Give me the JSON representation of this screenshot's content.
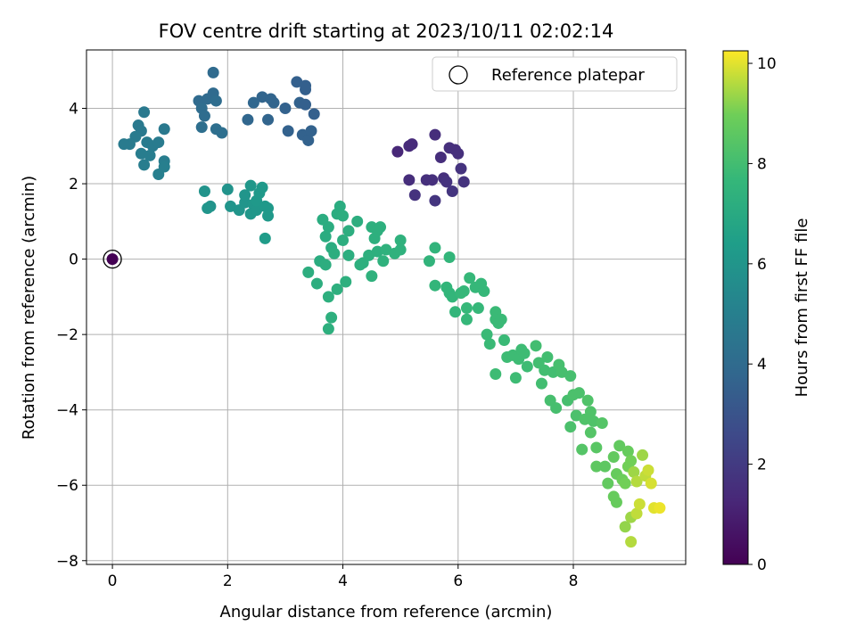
{
  "chart_data": {
    "type": "scatter",
    "title": "FOV centre drift starting at 2023/10/11 02:02:14",
    "xlabel": "Angular distance from reference (arcmin)",
    "ylabel": "Rotation from reference (arcmin)",
    "xlim": [
      -0.45,
      9.95
    ],
    "ylim": [
      -8.1,
      5.55
    ],
    "x_ticks": [
      0,
      2,
      4,
      6,
      8
    ],
    "y_ticks": [
      -8,
      -6,
      -4,
      -2,
      0,
      2,
      4
    ],
    "grid": true,
    "legend": {
      "position": "top-right",
      "entries": [
        "Reference platepar"
      ]
    },
    "reference_point": {
      "x": 0,
      "y": 0,
      "c": 0
    },
    "colorbar": {
      "label": "Hours from first FF file",
      "range": [
        0,
        10.25
      ],
      "ticks": [
        0,
        2,
        4,
        6,
        8,
        10
      ],
      "colormap": "viridis"
    },
    "points": [
      {
        "x": 0.0,
        "y": 0.0,
        "c": 0.0
      },
      {
        "x": 4.95,
        "y": 2.85,
        "c": 1.3
      },
      {
        "x": 5.15,
        "y": 3.0,
        "c": 1.4
      },
      {
        "x": 5.2,
        "y": 3.05,
        "c": 1.4
      },
      {
        "x": 5.6,
        "y": 3.3,
        "c": 1.5
      },
      {
        "x": 5.85,
        "y": 2.95,
        "c": 1.6
      },
      {
        "x": 5.95,
        "y": 2.9,
        "c": 1.6
      },
      {
        "x": 6.0,
        "y": 2.8,
        "c": 1.6
      },
      {
        "x": 5.7,
        "y": 2.7,
        "c": 1.5
      },
      {
        "x": 6.05,
        "y": 2.4,
        "c": 1.7
      },
      {
        "x": 5.15,
        "y": 2.1,
        "c": 1.5
      },
      {
        "x": 5.45,
        "y": 2.1,
        "c": 1.6
      },
      {
        "x": 5.55,
        "y": 2.1,
        "c": 1.6
      },
      {
        "x": 5.75,
        "y": 2.15,
        "c": 1.6
      },
      {
        "x": 5.8,
        "y": 2.05,
        "c": 1.7
      },
      {
        "x": 6.1,
        "y": 2.05,
        "c": 1.7
      },
      {
        "x": 5.25,
        "y": 1.7,
        "c": 1.7
      },
      {
        "x": 5.6,
        "y": 1.55,
        "c": 1.8
      },
      {
        "x": 5.9,
        "y": 1.8,
        "c": 1.8
      },
      {
        "x": 1.75,
        "y": 4.95,
        "c": 4.0
      },
      {
        "x": 1.65,
        "y": 4.25,
        "c": 4.0
      },
      {
        "x": 1.75,
        "y": 4.4,
        "c": 4.0
      },
      {
        "x": 1.5,
        "y": 4.2,
        "c": 4.0
      },
      {
        "x": 1.8,
        "y": 4.2,
        "c": 4.1
      },
      {
        "x": 1.55,
        "y": 4.0,
        "c": 4.1
      },
      {
        "x": 1.6,
        "y": 3.8,
        "c": 4.1
      },
      {
        "x": 1.55,
        "y": 3.5,
        "c": 4.2
      },
      {
        "x": 1.8,
        "y": 3.45,
        "c": 4.2
      },
      {
        "x": 1.9,
        "y": 3.35,
        "c": 4.2
      },
      {
        "x": 2.35,
        "y": 3.7,
        "c": 3.8
      },
      {
        "x": 2.45,
        "y": 4.15,
        "c": 3.8
      },
      {
        "x": 2.6,
        "y": 4.3,
        "c": 3.7
      },
      {
        "x": 2.75,
        "y": 4.25,
        "c": 3.7
      },
      {
        "x": 2.8,
        "y": 4.15,
        "c": 3.7
      },
      {
        "x": 2.7,
        "y": 3.7,
        "c": 3.7
      },
      {
        "x": 3.0,
        "y": 4.0,
        "c": 3.6
      },
      {
        "x": 3.05,
        "y": 3.4,
        "c": 3.6
      },
      {
        "x": 3.2,
        "y": 4.7,
        "c": 3.5
      },
      {
        "x": 3.35,
        "y": 4.6,
        "c": 3.5
      },
      {
        "x": 3.35,
        "y": 4.5,
        "c": 3.5
      },
      {
        "x": 3.25,
        "y": 4.15,
        "c": 3.6
      },
      {
        "x": 3.35,
        "y": 4.1,
        "c": 3.5
      },
      {
        "x": 3.3,
        "y": 3.3,
        "c": 3.6
      },
      {
        "x": 3.4,
        "y": 3.15,
        "c": 3.6
      },
      {
        "x": 3.45,
        "y": 3.4,
        "c": 3.6
      },
      {
        "x": 3.5,
        "y": 3.85,
        "c": 3.5
      },
      {
        "x": 0.55,
        "y": 3.9,
        "c": 4.7
      },
      {
        "x": 0.45,
        "y": 3.55,
        "c": 4.7
      },
      {
        "x": 0.5,
        "y": 3.4,
        "c": 4.7
      },
      {
        "x": 0.4,
        "y": 3.25,
        "c": 4.8
      },
      {
        "x": 0.3,
        "y": 3.05,
        "c": 4.8
      },
      {
        "x": 0.2,
        "y": 3.05,
        "c": 4.8
      },
      {
        "x": 0.6,
        "y": 3.1,
        "c": 4.8
      },
      {
        "x": 0.7,
        "y": 3.0,
        "c": 4.8
      },
      {
        "x": 0.8,
        "y": 3.1,
        "c": 4.8
      },
      {
        "x": 0.9,
        "y": 3.45,
        "c": 4.7
      },
      {
        "x": 0.5,
        "y": 2.8,
        "c": 4.9
      },
      {
        "x": 0.65,
        "y": 2.75,
        "c": 4.9
      },
      {
        "x": 0.55,
        "y": 2.5,
        "c": 4.9
      },
      {
        "x": 0.9,
        "y": 2.6,
        "c": 4.9
      },
      {
        "x": 0.9,
        "y": 2.45,
        "c": 5.0
      },
      {
        "x": 0.8,
        "y": 2.25,
        "c": 5.0
      },
      {
        "x": 1.6,
        "y": 1.8,
        "c": 5.9
      },
      {
        "x": 1.7,
        "y": 1.4,
        "c": 5.9
      },
      {
        "x": 1.65,
        "y": 1.35,
        "c": 6.0
      },
      {
        "x": 2.0,
        "y": 1.85,
        "c": 5.9
      },
      {
        "x": 2.05,
        "y": 1.4,
        "c": 6.0
      },
      {
        "x": 2.2,
        "y": 1.3,
        "c": 6.0
      },
      {
        "x": 2.3,
        "y": 1.5,
        "c": 6.0
      },
      {
        "x": 2.3,
        "y": 1.7,
        "c": 6.0
      },
      {
        "x": 2.4,
        "y": 1.95,
        "c": 6.1
      },
      {
        "x": 2.4,
        "y": 1.2,
        "c": 6.1
      },
      {
        "x": 2.45,
        "y": 1.45,
        "c": 6.1
      },
      {
        "x": 2.5,
        "y": 1.3,
        "c": 6.1
      },
      {
        "x": 2.5,
        "y": 1.55,
        "c": 6.2
      },
      {
        "x": 2.55,
        "y": 1.75,
        "c": 6.2
      },
      {
        "x": 2.6,
        "y": 1.9,
        "c": 6.2
      },
      {
        "x": 2.65,
        "y": 1.4,
        "c": 6.2
      },
      {
        "x": 2.7,
        "y": 1.35,
        "c": 6.2
      },
      {
        "x": 2.7,
        "y": 1.15,
        "c": 6.2
      },
      {
        "x": 2.65,
        "y": 0.55,
        "c": 6.3
      },
      {
        "x": 3.6,
        "y": -0.05,
        "c": 7.1
      },
      {
        "x": 3.7,
        "y": 0.6,
        "c": 7.1
      },
      {
        "x": 3.75,
        "y": 0.85,
        "c": 7.1
      },
      {
        "x": 3.8,
        "y": 0.3,
        "c": 7.1
      },
      {
        "x": 3.85,
        "y": 0.15,
        "c": 7.2
      },
      {
        "x": 3.9,
        "y": 1.2,
        "c": 7.1
      },
      {
        "x": 3.95,
        "y": 1.4,
        "c": 7.1
      },
      {
        "x": 4.0,
        "y": 1.15,
        "c": 7.2
      },
      {
        "x": 3.55,
        "y": -0.65,
        "c": 7.2
      },
      {
        "x": 3.7,
        "y": -0.15,
        "c": 7.2
      },
      {
        "x": 3.75,
        "y": -1.0,
        "c": 7.3
      },
      {
        "x": 3.8,
        "y": -1.55,
        "c": 7.3
      },
      {
        "x": 3.75,
        "y": -1.85,
        "c": 7.3
      },
      {
        "x": 3.9,
        "y": -0.8,
        "c": 7.3
      },
      {
        "x": 4.05,
        "y": -0.6,
        "c": 7.3
      },
      {
        "x": 3.4,
        "y": -0.35,
        "c": 7.2
      },
      {
        "x": 3.65,
        "y": 1.05,
        "c": 7.1
      },
      {
        "x": 4.0,
        "y": 0.5,
        "c": 7.2
      },
      {
        "x": 4.1,
        "y": 0.1,
        "c": 7.2
      },
      {
        "x": 4.1,
        "y": 0.75,
        "c": 7.2
      },
      {
        "x": 4.25,
        "y": 1.0,
        "c": 7.2
      },
      {
        "x": 4.3,
        "y": -0.15,
        "c": 7.3
      },
      {
        "x": 4.35,
        "y": -0.1,
        "c": 7.3
      },
      {
        "x": 4.45,
        "y": 0.1,
        "c": 7.3
      },
      {
        "x": 4.5,
        "y": 0.85,
        "c": 7.3
      },
      {
        "x": 4.55,
        "y": 0.55,
        "c": 7.3
      },
      {
        "x": 4.6,
        "y": 0.75,
        "c": 7.3
      },
      {
        "x": 4.6,
        "y": 0.2,
        "c": 7.3
      },
      {
        "x": 4.65,
        "y": 0.85,
        "c": 7.3
      },
      {
        "x": 4.5,
        "y": -0.45,
        "c": 7.4
      },
      {
        "x": 4.7,
        "y": -0.05,
        "c": 7.4
      },
      {
        "x": 4.75,
        "y": 0.25,
        "c": 7.4
      },
      {
        "x": 4.9,
        "y": 0.15,
        "c": 7.4
      },
      {
        "x": 5.0,
        "y": 0.5,
        "c": 7.4
      },
      {
        "x": 5.0,
        "y": 0.25,
        "c": 7.4
      },
      {
        "x": 5.5,
        "y": -0.05,
        "c": 7.5
      },
      {
        "x": 5.6,
        "y": 0.3,
        "c": 7.5
      },
      {
        "x": 5.6,
        "y": -0.7,
        "c": 7.6
      },
      {
        "x": 5.85,
        "y": 0.05,
        "c": 7.6
      },
      {
        "x": 5.8,
        "y": -0.75,
        "c": 7.6
      },
      {
        "x": 5.85,
        "y": -0.9,
        "c": 7.6
      },
      {
        "x": 5.9,
        "y": -1.0,
        "c": 7.6
      },
      {
        "x": 5.95,
        "y": -1.4,
        "c": 7.6
      },
      {
        "x": 6.05,
        "y": -0.9,
        "c": 7.7
      },
      {
        "x": 6.1,
        "y": -0.85,
        "c": 7.7
      },
      {
        "x": 6.15,
        "y": -1.3,
        "c": 7.7
      },
      {
        "x": 6.15,
        "y": -1.6,
        "c": 7.7
      },
      {
        "x": 6.2,
        "y": -0.5,
        "c": 7.7
      },
      {
        "x": 6.3,
        "y": -0.75,
        "c": 7.7
      },
      {
        "x": 6.35,
        "y": -1.3,
        "c": 7.7
      },
      {
        "x": 6.4,
        "y": -0.65,
        "c": 7.7
      },
      {
        "x": 6.45,
        "y": -0.85,
        "c": 7.7
      },
      {
        "x": 6.5,
        "y": -2.0,
        "c": 7.8
      },
      {
        "x": 6.55,
        "y": -2.25,
        "c": 7.8
      },
      {
        "x": 6.65,
        "y": -1.4,
        "c": 7.8
      },
      {
        "x": 6.65,
        "y": -1.6,
        "c": 7.8
      },
      {
        "x": 6.7,
        "y": -1.7,
        "c": 7.8
      },
      {
        "x": 6.75,
        "y": -1.6,
        "c": 7.8
      },
      {
        "x": 6.65,
        "y": -3.05,
        "c": 7.9
      },
      {
        "x": 6.8,
        "y": -2.15,
        "c": 7.8
      },
      {
        "x": 6.85,
        "y": -2.6,
        "c": 7.9
      },
      {
        "x": 6.95,
        "y": -2.55,
        "c": 7.9
      },
      {
        "x": 7.05,
        "y": -2.65,
        "c": 7.9
      },
      {
        "x": 7.0,
        "y": -3.15,
        "c": 7.9
      },
      {
        "x": 7.1,
        "y": -2.4,
        "c": 7.9
      },
      {
        "x": 7.15,
        "y": -2.5,
        "c": 7.9
      },
      {
        "x": 7.2,
        "y": -2.85,
        "c": 7.9
      },
      {
        "x": 7.35,
        "y": -2.3,
        "c": 8.0
      },
      {
        "x": 7.4,
        "y": -2.75,
        "c": 8.0
      },
      {
        "x": 7.45,
        "y": -3.3,
        "c": 8.0
      },
      {
        "x": 7.5,
        "y": -2.95,
        "c": 8.0
      },
      {
        "x": 7.55,
        "y": -2.6,
        "c": 8.0
      },
      {
        "x": 7.65,
        "y": -3.0,
        "c": 8.0
      },
      {
        "x": 7.6,
        "y": -3.75,
        "c": 8.1
      },
      {
        "x": 7.7,
        "y": -3.95,
        "c": 8.1
      },
      {
        "x": 7.75,
        "y": -2.8,
        "c": 8.1
      },
      {
        "x": 7.8,
        "y": -3.0,
        "c": 8.1
      },
      {
        "x": 7.9,
        "y": -3.75,
        "c": 8.1
      },
      {
        "x": 7.95,
        "y": -3.1,
        "c": 8.1
      },
      {
        "x": 7.95,
        "y": -4.45,
        "c": 8.2
      },
      {
        "x": 8.0,
        "y": -3.6,
        "c": 8.2
      },
      {
        "x": 8.05,
        "y": -4.15,
        "c": 8.2
      },
      {
        "x": 8.1,
        "y": -3.55,
        "c": 8.2
      },
      {
        "x": 8.2,
        "y": -4.25,
        "c": 8.3
      },
      {
        "x": 8.25,
        "y": -3.75,
        "c": 8.3
      },
      {
        "x": 8.3,
        "y": -4.05,
        "c": 8.3
      },
      {
        "x": 8.35,
        "y": -4.3,
        "c": 8.3
      },
      {
        "x": 8.3,
        "y": -4.6,
        "c": 8.4
      },
      {
        "x": 8.15,
        "y": -5.05,
        "c": 8.4
      },
      {
        "x": 8.4,
        "y": -5.0,
        "c": 8.5
      },
      {
        "x": 8.4,
        "y": -5.5,
        "c": 8.6
      },
      {
        "x": 8.5,
        "y": -4.35,
        "c": 8.4
      },
      {
        "x": 8.55,
        "y": -5.5,
        "c": 8.6
      },
      {
        "x": 8.6,
        "y": -5.95,
        "c": 8.7
      },
      {
        "x": 8.7,
        "y": -5.25,
        "c": 8.7
      },
      {
        "x": 8.7,
        "y": -6.3,
        "c": 8.8
      },
      {
        "x": 8.75,
        "y": -5.7,
        "c": 8.8
      },
      {
        "x": 8.75,
        "y": -6.45,
        "c": 8.8
      },
      {
        "x": 8.8,
        "y": -4.95,
        "c": 8.7
      },
      {
        "x": 8.85,
        "y": -5.85,
        "c": 8.9
      },
      {
        "x": 8.9,
        "y": -5.95,
        "c": 9.0
      },
      {
        "x": 8.9,
        "y": -7.1,
        "c": 9.3
      },
      {
        "x": 8.95,
        "y": -5.1,
        "c": 8.8
      },
      {
        "x": 8.95,
        "y": -5.5,
        "c": 9.0
      },
      {
        "x": 9.0,
        "y": -5.35,
        "c": 9.0
      },
      {
        "x": 9.0,
        "y": -6.85,
        "c": 9.4
      },
      {
        "x": 9.0,
        "y": -7.5,
        "c": 9.6
      },
      {
        "x": 9.05,
        "y": -5.65,
        "c": 9.4
      },
      {
        "x": 9.1,
        "y": -5.9,
        "c": 9.6
      },
      {
        "x": 9.1,
        "y": -6.75,
        "c": 9.7
      },
      {
        "x": 9.15,
        "y": -6.5,
        "c": 9.8
      },
      {
        "x": 9.2,
        "y": -5.2,
        "c": 9.4
      },
      {
        "x": 9.25,
        "y": -5.75,
        "c": 9.7
      },
      {
        "x": 9.3,
        "y": -5.6,
        "c": 9.8
      },
      {
        "x": 9.35,
        "y": -5.95,
        "c": 9.9
      },
      {
        "x": 9.4,
        "y": -6.6,
        "c": 10.0
      },
      {
        "x": 9.5,
        "y": -6.6,
        "c": 10.1
      }
    ]
  }
}
